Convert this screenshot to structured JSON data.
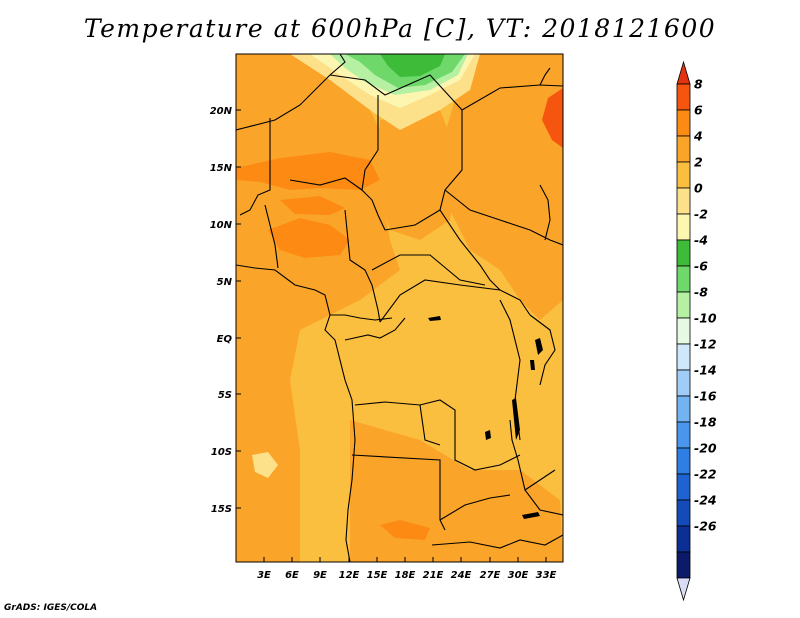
{
  "title": "Temperature at 600hPa [C], VT: 2018121600",
  "credit": "GrADS: IGES/COLA",
  "map": {
    "lat_labels": [
      "20N",
      "15N",
      "10N",
      "5N",
      "EQ",
      "5S",
      "10S",
      "15S"
    ],
    "lon_labels": [
      "3E",
      "6E",
      "9E",
      "12E",
      "15E",
      "18E",
      "21E",
      "24E",
      "27E",
      "30E",
      "33E"
    ]
  },
  "colorbar": {
    "labels": [
      "8",
      "6",
      "4",
      "2",
      "0",
      "-2",
      "-4",
      "-6",
      "-8",
      "-10",
      "-12",
      "-14",
      "-16",
      "-18",
      "-20",
      "-22",
      "-24",
      "-26"
    ],
    "colors": [
      "#e23410",
      "#f6550f",
      "#fd8a12",
      "#faa52a",
      "#fbbf40",
      "#fde08a",
      "#fdf6b0",
      "#3fbb3a",
      "#6ed86a",
      "#b5f0a3",
      "#e5f9e3",
      "#cfe7fb",
      "#9fcdf8",
      "#74b3f1",
      "#4a96ec",
      "#2f7ee3",
      "#1f63d2",
      "#144bb8",
      "#0c2f94",
      "#0b1a69",
      "#d8dcf6"
    ]
  }
}
